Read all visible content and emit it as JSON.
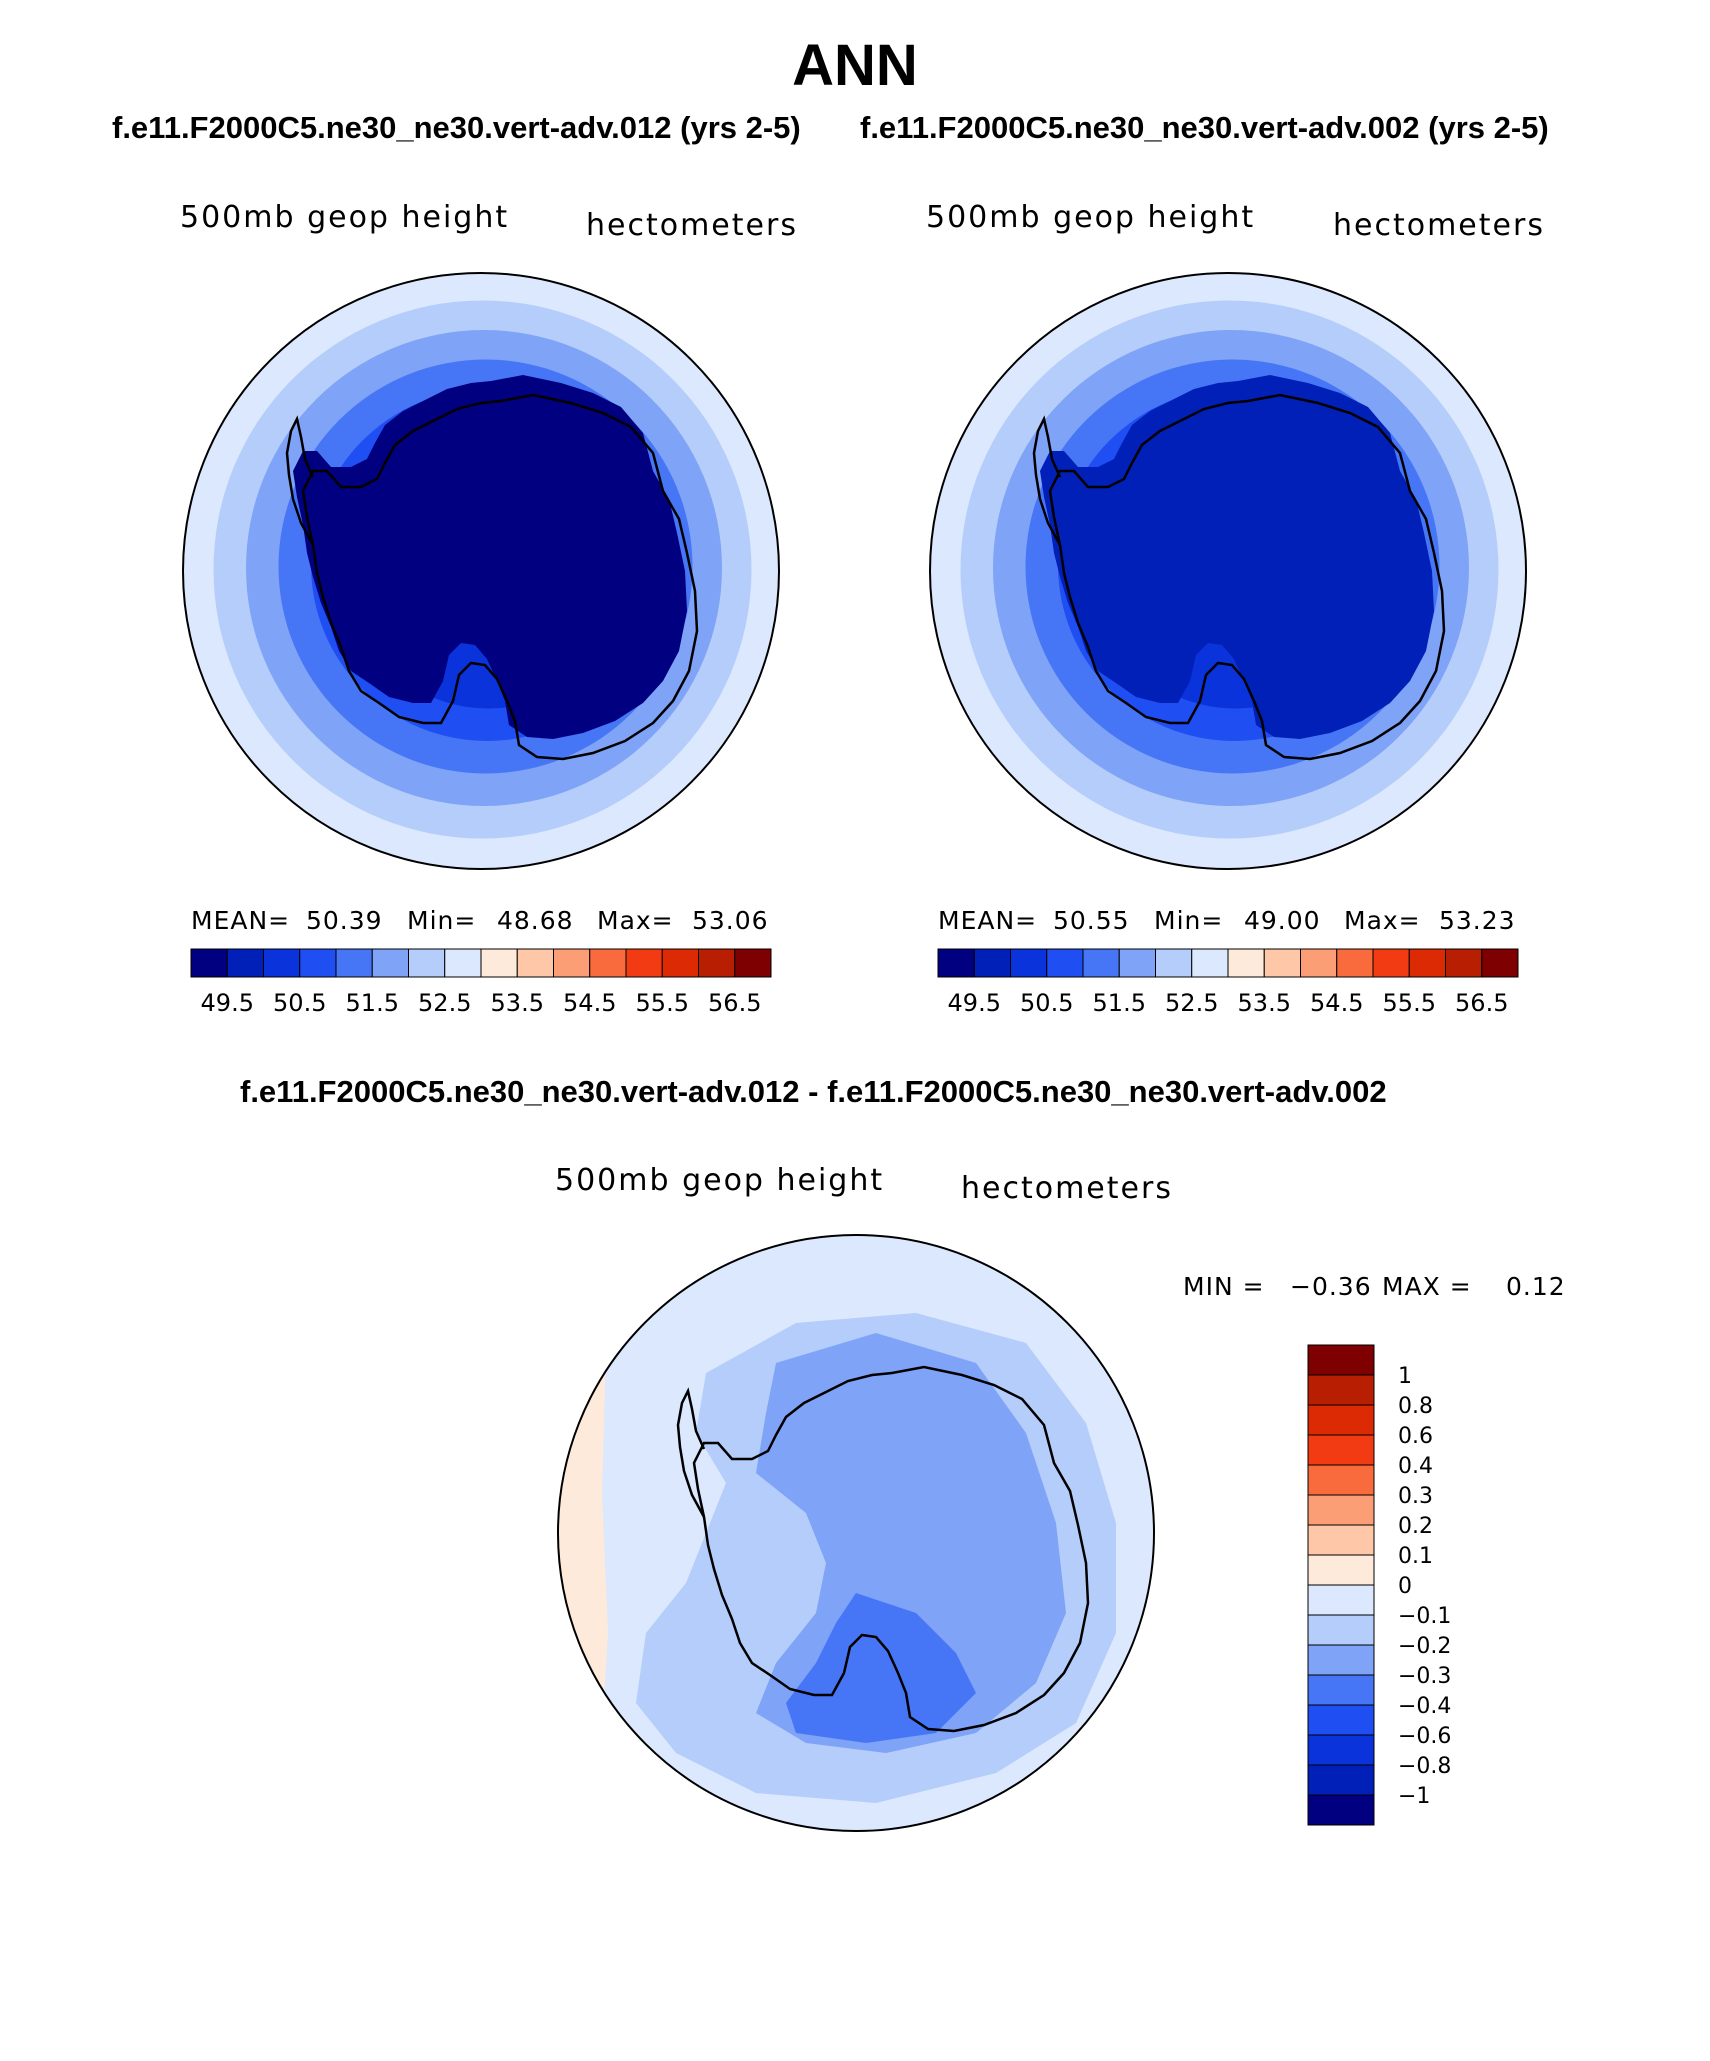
{
  "figure": {
    "title": "ANN",
    "subtitle_case1": "f.e11.F2000C5.ne30_ne30.vert-adv.012 (yrs 2-5)",
    "subtitle_case2": "f.e11.F2000C5.ne30_ne30.vert-adv.002 (yrs 2-5)",
    "diff_title": "f.e11.F2000C5.ne30_ne30.vert-adv.012 - f.e11.F2000C5.ne30_ne30.vert-adv.002"
  },
  "panels": [
    {
      "variable": "500mb  geop  height",
      "units": "hectometers",
      "mean_label": "MEAN=",
      "mean_value": "50.39",
      "min_label": "Min=",
      "min_value": "48.68",
      "max_label": "Max=",
      "max_value": "53.06",
      "center_level": 0
    },
    {
      "variable": "500mb  geop  height",
      "units": "hectometers",
      "mean_label": "MEAN=",
      "mean_value": "50.55",
      "min_label": "Min=",
      "min_value": "49.00",
      "max_label": "Max=",
      "max_value": "53.23",
      "center_level": 1
    }
  ],
  "diff_panel": {
    "variable": "500mb  geop  height",
    "units": "hectometers",
    "min_label": "MIN =",
    "min_value": "−0.36",
    "max_label": "MAX =",
    "max_value": "0.12"
  },
  "colorbar_levels": [
    "49.5",
    "50.5",
    "51.5",
    "52.5",
    "53.5",
    "54.5",
    "55.5",
    "56.5"
  ],
  "colorbar_colors": [
    "#000080",
    "#0020b8",
    "#0a33dc",
    "#1f4ef2",
    "#4676f5",
    "#7ea3f7",
    "#b5cdfa",
    "#dbe8fd",
    "#feeada",
    "#fdc7a8",
    "#fb9e76",
    "#f96b3c",
    "#f23b13",
    "#dc2a05",
    "#b81f02",
    "#7f0000"
  ],
  "diff_colorbar_labels": [
    "1",
    "0.8",
    "0.6",
    "0.4",
    "0.3",
    "0.2",
    "0.1",
    "0",
    "−0.1",
    "−0.2",
    "−0.3",
    "−0.4",
    "−0.6",
    "−0.8",
    "−1"
  ],
  "diff_colorbar_colors": [
    "#7f0000",
    "#b81f02",
    "#dc2a05",
    "#f23b13",
    "#f96b3c",
    "#fb9e76",
    "#fdc7a8",
    "#feeada",
    "#dbe8fd",
    "#b5cdfa",
    "#7ea3f7",
    "#4676f5",
    "#1f4ef2",
    "#0a33dc",
    "#0020b8",
    "#000080"
  ]
}
